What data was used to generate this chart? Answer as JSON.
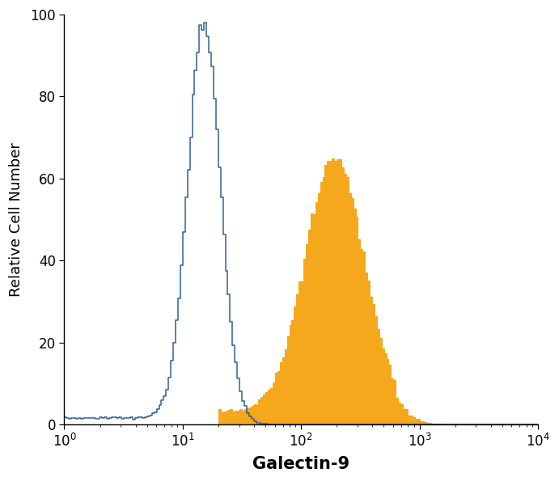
{
  "title": "",
  "xlabel": "Galectin-9",
  "ylabel": "Relative Cell Number",
  "xlim": [
    1,
    10000
  ],
  "ylim": [
    0,
    100
  ],
  "yticks": [
    0,
    20,
    40,
    60,
    80,
    100
  ],
  "blue_color": "#2e6096",
  "orange_color": "#f5a81c",
  "blue_peak_height": 98,
  "orange_peak_height": 65,
  "xlabel_fontsize": 15,
  "ylabel_fontsize": 13,
  "tick_fontsize": 12,
  "xlabel_fontweight": "bold",
  "background_color": "#ffffff",
  "n_bins": 200
}
